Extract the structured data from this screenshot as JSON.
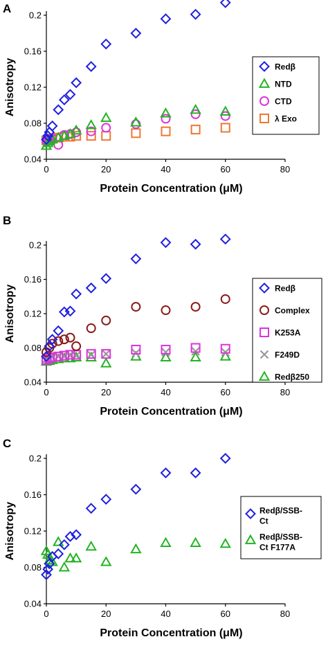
{
  "chart_data": [
    {
      "type": "scatter",
      "panel_label": "A",
      "xlabel": "Protein Concentration (μM)",
      "ylabel": "Anisotropy",
      "xlim": [
        0,
        80
      ],
      "ylim": [
        0.04,
        0.2
      ],
      "xticks": [
        0,
        20,
        40,
        60,
        80
      ],
      "yticks": [
        0.04,
        0.08,
        0.12,
        0.16,
        0.2
      ],
      "xtick_labels": [
        "0",
        "20",
        "40",
        "60",
        "80"
      ],
      "ytick_labels": [
        "0.04",
        "0.08",
        "0.12",
        "0.16",
        "0.2"
      ],
      "grid": false,
      "legend_position": "right",
      "series": [
        {
          "name": "Redβ",
          "marker": "diamond",
          "color": "#1f1fe0",
          "x": [
            0,
            0.5,
            1,
            2,
            4,
            6,
            8,
            10,
            15,
            20,
            30,
            40,
            50,
            60
          ],
          "y": [
            0.062,
            0.066,
            0.07,
            0.077,
            0.095,
            0.106,
            0.112,
            0.125,
            0.143,
            0.168,
            0.18,
            0.196,
            0.201,
            0.214
          ]
        },
        {
          "name": "NTD",
          "marker": "triangle",
          "color": "#22b422",
          "x": [
            0,
            0.5,
            1,
            2,
            4,
            6,
            8,
            10,
            15,
            20,
            30,
            40,
            50,
            60
          ],
          "y": [
            0.055,
            0.058,
            0.06,
            0.062,
            0.064,
            0.066,
            0.068,
            0.072,
            0.078,
            0.086,
            0.081,
            0.091,
            0.095,
            0.093
          ]
        },
        {
          "name": "CTD",
          "marker": "circle",
          "color": "#dd33dd",
          "x": [
            0,
            0.5,
            1,
            2,
            4,
            6,
            8,
            10,
            15,
            20,
            30,
            40,
            50,
            60
          ],
          "y": [
            0.06,
            0.061,
            0.062,
            0.063,
            0.056,
            0.067,
            0.068,
            0.07,
            0.071,
            0.075,
            0.079,
            0.085,
            0.09,
            0.088
          ]
        },
        {
          "name": "λ Exo",
          "marker": "square",
          "color": "#ee7733",
          "x": [
            0,
            0.5,
            1,
            2,
            4,
            6,
            8,
            10,
            15,
            20,
            30,
            40,
            50,
            60
          ],
          "y": [
            0.061,
            0.062,
            0.062,
            0.063,
            0.064,
            0.065,
            0.065,
            0.066,
            0.066,
            0.066,
            0.069,
            0.071,
            0.073,
            0.075
          ]
        }
      ]
    },
    {
      "type": "scatter",
      "panel_label": "B",
      "xlabel": "Protein Concentration (μM)",
      "ylabel": "Anisotropy",
      "xlim": [
        0,
        80
      ],
      "ylim": [
        0.04,
        0.2
      ],
      "xticks": [
        0,
        20,
        40,
        60,
        80
      ],
      "yticks": [
        0.04,
        0.08,
        0.12,
        0.16,
        0.2
      ],
      "xtick_labels": [
        "0",
        "20",
        "40",
        "60",
        "80"
      ],
      "ytick_labels": [
        "0.04",
        "0.08",
        "0.12",
        "0.16",
        "0.2"
      ],
      "grid": false,
      "legend_position": "right",
      "series": [
        {
          "name": "Redβ",
          "marker": "diamond",
          "color": "#1f1fe0",
          "x": [
            0,
            1,
            2,
            4,
            6,
            8,
            10,
            15,
            20,
            30,
            40,
            50,
            60
          ],
          "y": [
            0.07,
            0.082,
            0.09,
            0.1,
            0.122,
            0.123,
            0.143,
            0.15,
            0.161,
            0.184,
            0.203,
            0.201,
            0.207
          ]
        },
        {
          "name": "Complex",
          "marker": "circle",
          "color": "#8b1a1a",
          "x": [
            0,
            1,
            2,
            4,
            6,
            8,
            10,
            15,
            20,
            30,
            40,
            50,
            60
          ],
          "y": [
            0.075,
            0.08,
            0.085,
            0.088,
            0.09,
            0.092,
            0.082,
            0.103,
            0.112,
            0.128,
            0.124,
            0.128,
            0.137
          ]
        },
        {
          "name": "K253A",
          "marker": "square",
          "color": "#dd33dd",
          "x": [
            0,
            1,
            2,
            4,
            6,
            8,
            10,
            15,
            20,
            30,
            40,
            50,
            60
          ],
          "y": [
            0.066,
            0.068,
            0.069,
            0.07,
            0.071,
            0.072,
            0.072,
            0.073,
            0.073,
            0.078,
            0.078,
            0.08,
            0.079
          ]
        },
        {
          "name": "F249D",
          "marker": "cross",
          "color": "#999999",
          "x": [
            0,
            1,
            2,
            4,
            6,
            8,
            10,
            15,
            20,
            30,
            40,
            50,
            60
          ],
          "y": [
            0.067,
            0.068,
            0.069,
            0.07,
            0.07,
            0.071,
            0.071,
            0.072,
            0.073,
            0.074,
            0.075,
            0.076,
            0.075
          ]
        },
        {
          "name": "Redβ250",
          "marker": "triangle",
          "color": "#22b422",
          "x": [
            0,
            1,
            2,
            4,
            6,
            8,
            10,
            15,
            20,
            30,
            40,
            50,
            60
          ],
          "y": [
            0.064,
            0.065,
            0.066,
            0.067,
            0.068,
            0.068,
            0.069,
            0.069,
            0.062,
            0.07,
            0.069,
            0.069,
            0.07
          ]
        }
      ]
    },
    {
      "type": "scatter",
      "panel_label": "C",
      "xlabel": "Protein Concentration  (μM)",
      "ylabel": "Anisotropy",
      "xlim": [
        0,
        80
      ],
      "ylim": [
        0.04,
        0.2
      ],
      "xticks": [
        0,
        20,
        40,
        60,
        80
      ],
      "yticks": [
        0.04,
        0.08,
        0.12,
        0.16,
        0.2
      ],
      "xtick_labels": [
        "0",
        "20",
        "40",
        "60",
        "80"
      ],
      "ytick_labels": [
        "0.04",
        "0.08",
        "0.12",
        "0.16",
        "0.2"
      ],
      "grid": false,
      "legend_position": "right",
      "series": [
        {
          "name": "Redβ/SSB-Ct",
          "legend_lines": [
            "Redβ/SSB-",
            "Ct"
          ],
          "marker": "diamond",
          "color": "#1f1fe0",
          "x": [
            0,
            0.5,
            1,
            2,
            4,
            6,
            8,
            10,
            15,
            20,
            30,
            40,
            50,
            60
          ],
          "y": [
            0.072,
            0.078,
            0.084,
            0.092,
            0.095,
            0.105,
            0.114,
            0.116,
            0.145,
            0.155,
            0.166,
            0.184,
            0.184,
            0.2
          ]
        },
        {
          "name": "Redβ/SSB-Ct F177A",
          "legend_lines": [
            "Redβ/SSB-",
            "Ct F177A"
          ],
          "marker": "triangle",
          "color": "#22b422",
          "x": [
            0,
            0.5,
            1,
            2,
            4,
            6,
            8,
            10,
            15,
            20,
            30,
            40,
            50,
            60
          ],
          "y": [
            0.098,
            0.094,
            0.088,
            0.086,
            0.108,
            0.08,
            0.09,
            0.09,
            0.103,
            0.086,
            0.1,
            0.107,
            0.107,
            0.106
          ]
        }
      ]
    }
  ]
}
